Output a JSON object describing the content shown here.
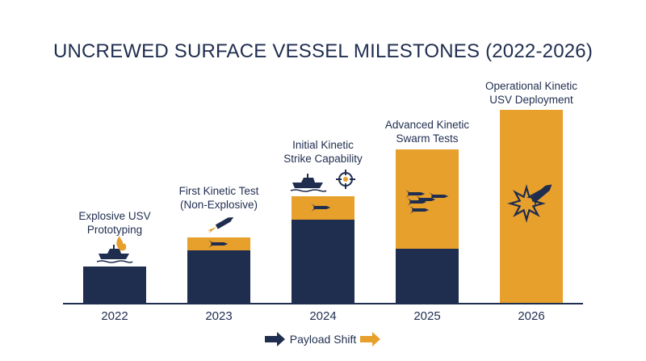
{
  "chart_data": {
    "type": "bar",
    "title": "UNCREWED SURFACE VESSEL MILESTONES (2022-2026)",
    "categories": [
      "2022",
      "2023",
      "2024",
      "2025",
      "2026"
    ],
    "series": [
      {
        "values": [
          45,
          65,
          103,
          67,
          0
        ]
      },
      {
        "values": [
          0,
          16,
          29,
          123,
          239
        ]
      }
    ],
    "ylim": [
      0,
      250
    ],
    "annotations": [
      [
        "Explosive USV",
        "Prototyping"
      ],
      [
        "First Kinetic Test",
        "(Non-Explosive)"
      ],
      [
        "Initial Kinetic",
        "Strike Capability"
      ],
      [
        "Advanced Kinetic",
        "Swarm Tests"
      ],
      [
        "Operational Kinetic",
        "USV Deployment"
      ]
    ],
    "legend": {
      "label": "Payload Shift",
      "placement": "bottom-center"
    },
    "colors": {
      "navy": "#1f2d4f",
      "orange": "#e8a02c",
      "text": "#1f2d4f"
    },
    "icons": [
      "boat-fire-icon",
      "missile-launch-icon",
      "boat-target-icon",
      "missile-swarm-icon",
      "explosion-missile-icon"
    ],
    "grid": false
  }
}
